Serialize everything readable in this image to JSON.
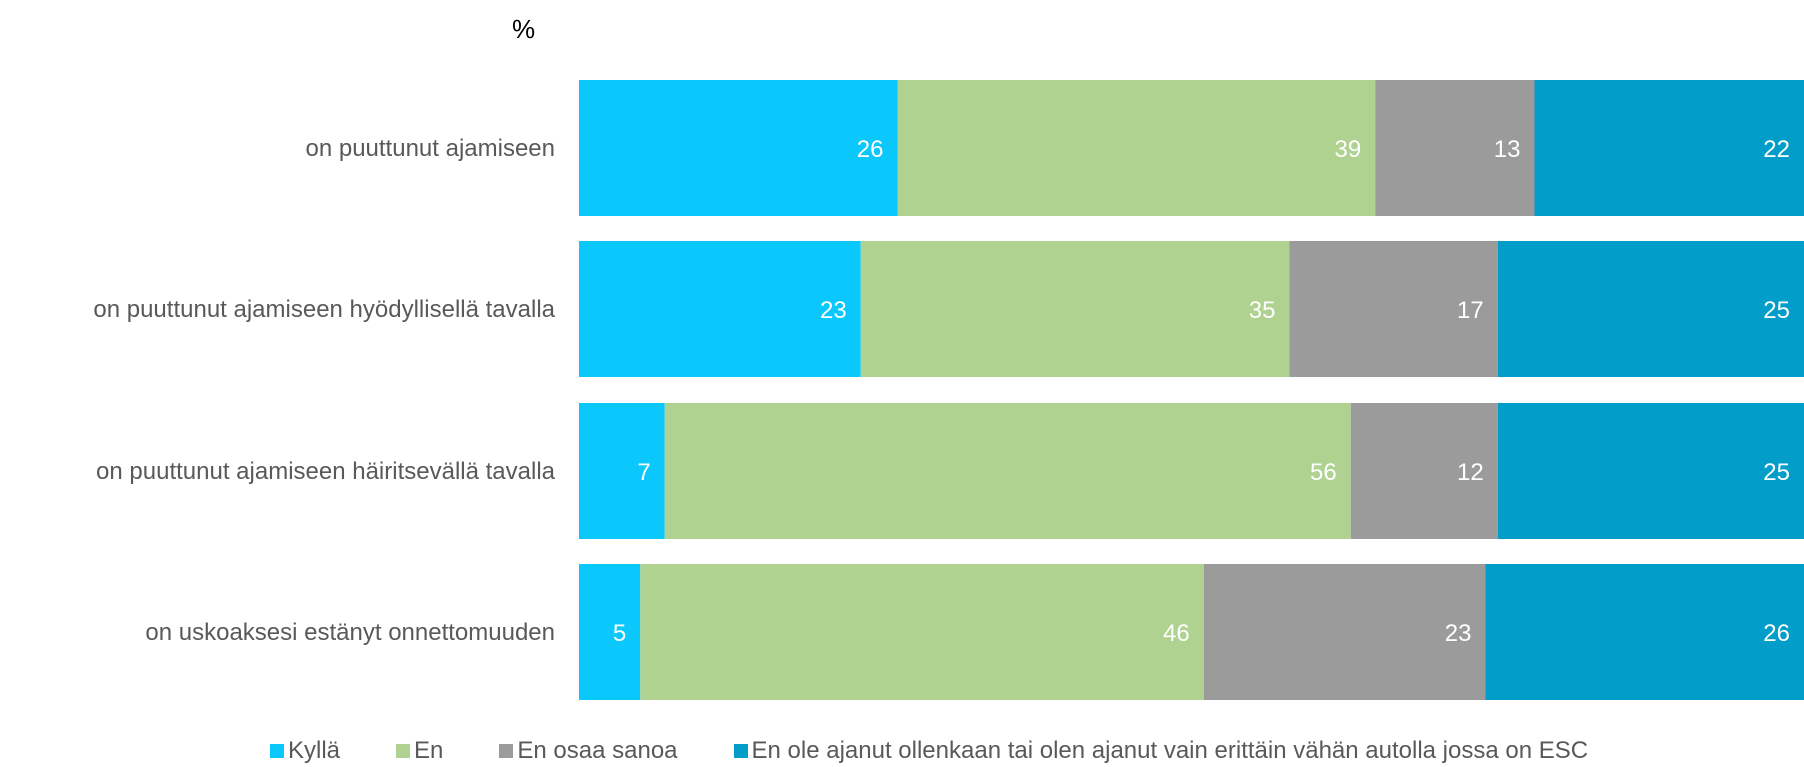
{
  "chart_data": {
    "type": "bar",
    "orientation": "horizontal",
    "stacked": true,
    "unit_label": "%",
    "categories": [
      "on puuttunut ajamiseen",
      "on puuttunut ajamiseen hyödyllisellä tavalla",
      "on puuttunut ajamiseen häiritsevällä tavalla",
      "on uskoaksesi estänyt onnettomuuden"
    ],
    "series": [
      {
        "name": "Kyllä",
        "color": "#0BC8FC",
        "values": [
          26,
          23,
          7,
          5
        ]
      },
      {
        "name": "En",
        "color": "#AFD291",
        "values": [
          39,
          35,
          56,
          46
        ]
      },
      {
        "name": "En osaa sanoa",
        "color": "#9B9B9B",
        "values": [
          13,
          17,
          12,
          23
        ]
      },
      {
        "name": "En ole ajanut ollenkaan tai olen ajanut vain erittäin vähän autolla jossa on ESC",
        "color": "#029DC9",
        "values": [
          22,
          25,
          25,
          26
        ]
      }
    ],
    "xlim": [
      0,
      100
    ],
    "grid": false,
    "legend_position": "bottom"
  }
}
